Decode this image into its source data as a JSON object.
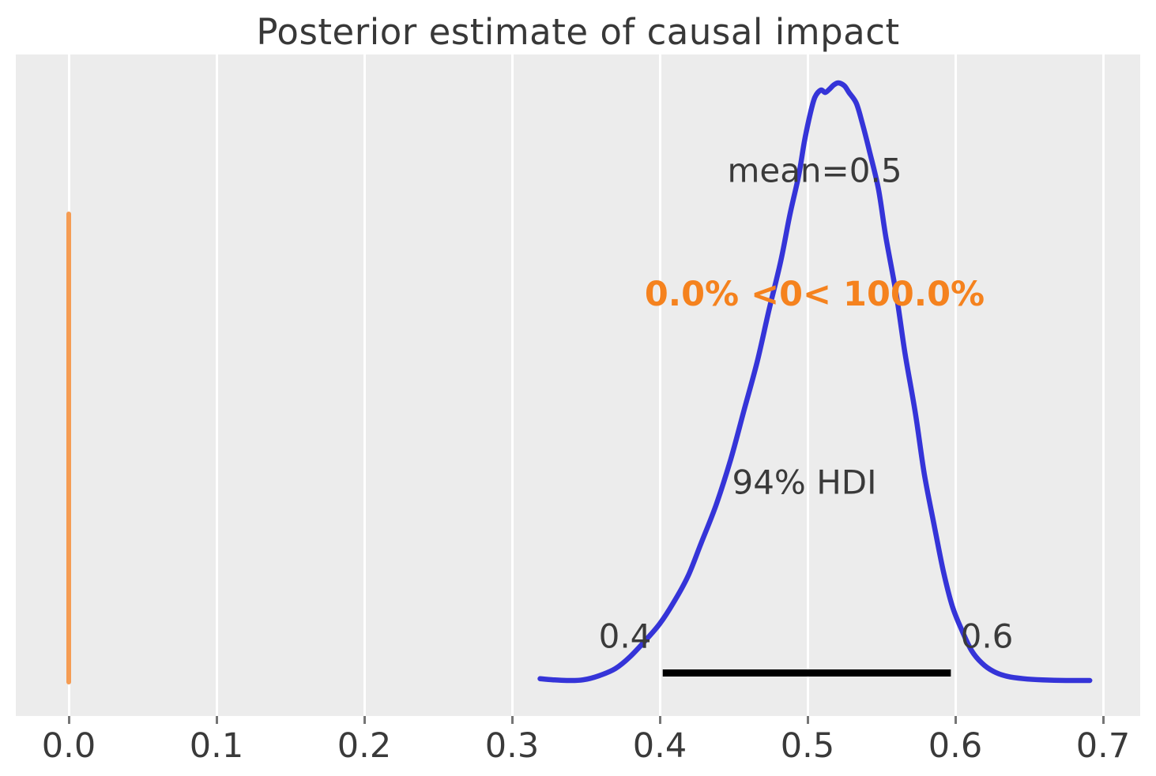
{
  "chart_data": {
    "type": "line",
    "title": "Posterior estimate of causal impact",
    "xlabel": "",
    "ylabel": "",
    "xlim": [
      -0.036,
      0.725
    ],
    "grid": true,
    "x_ticks": {
      "values": [
        0.0,
        0.1,
        0.2,
        0.3,
        0.4,
        0.5,
        0.6,
        0.7
      ],
      "labels": [
        "0.0",
        "0.1",
        "0.2",
        "0.3",
        "0.4",
        "0.5",
        "0.6",
        "0.7"
      ]
    },
    "kde": {
      "name": "posterior density",
      "x": [
        0.319,
        0.328,
        0.337,
        0.348,
        0.359,
        0.37,
        0.38,
        0.391,
        0.4,
        0.409,
        0.419,
        0.428,
        0.438,
        0.448,
        0.457,
        0.466,
        0.474,
        0.482,
        0.488,
        0.494,
        0.498,
        0.502,
        0.505,
        0.509,
        0.512,
        0.515,
        0.518,
        0.521,
        0.525,
        0.528,
        0.533,
        0.537,
        0.542,
        0.548,
        0.553,
        0.56,
        0.566,
        0.573,
        0.579,
        0.586,
        0.592,
        0.598,
        0.605,
        0.611,
        0.618,
        0.626,
        0.635,
        0.646,
        0.659,
        0.675,
        0.691
      ],
      "density": [
        0.003,
        0.001,
        0.0,
        0.001,
        0.008,
        0.02,
        0.04,
        0.069,
        0.095,
        0.129,
        0.174,
        0.23,
        0.293,
        0.37,
        0.452,
        0.534,
        0.621,
        0.703,
        0.779,
        0.845,
        0.904,
        0.95,
        0.976,
        0.988,
        0.984,
        0.99,
        0.997,
        1.0,
        0.995,
        0.984,
        0.966,
        0.933,
        0.885,
        0.822,
        0.742,
        0.647,
        0.547,
        0.447,
        0.346,
        0.256,
        0.182,
        0.124,
        0.081,
        0.05,
        0.029,
        0.015,
        0.007,
        0.003,
        0.001,
        0.0,
        0.0
      ]
    },
    "mean": 0.5,
    "ref_value": 0.0,
    "hdi_probability": "94%",
    "hdi_interval": [
      0.402,
      0.597
    ],
    "annotations": {
      "mean_label": "mean=0.5",
      "ref_val_label": "0.0% <0< 100.0%",
      "hdi_label": "94% HDI",
      "hdi_lower_label": "0.4",
      "hdi_upper_label": "0.6"
    },
    "legend": null,
    "colors": {
      "curve": "#3534d8",
      "ref_line": "#f59c53",
      "ref_text": "#f5821e",
      "hdi_line": "#000000",
      "plot_background": "#ececec",
      "gridline": "#ffffff",
      "tick_mark": "#757575",
      "text": "#3a3a3a",
      "title": "#383838"
    }
  }
}
